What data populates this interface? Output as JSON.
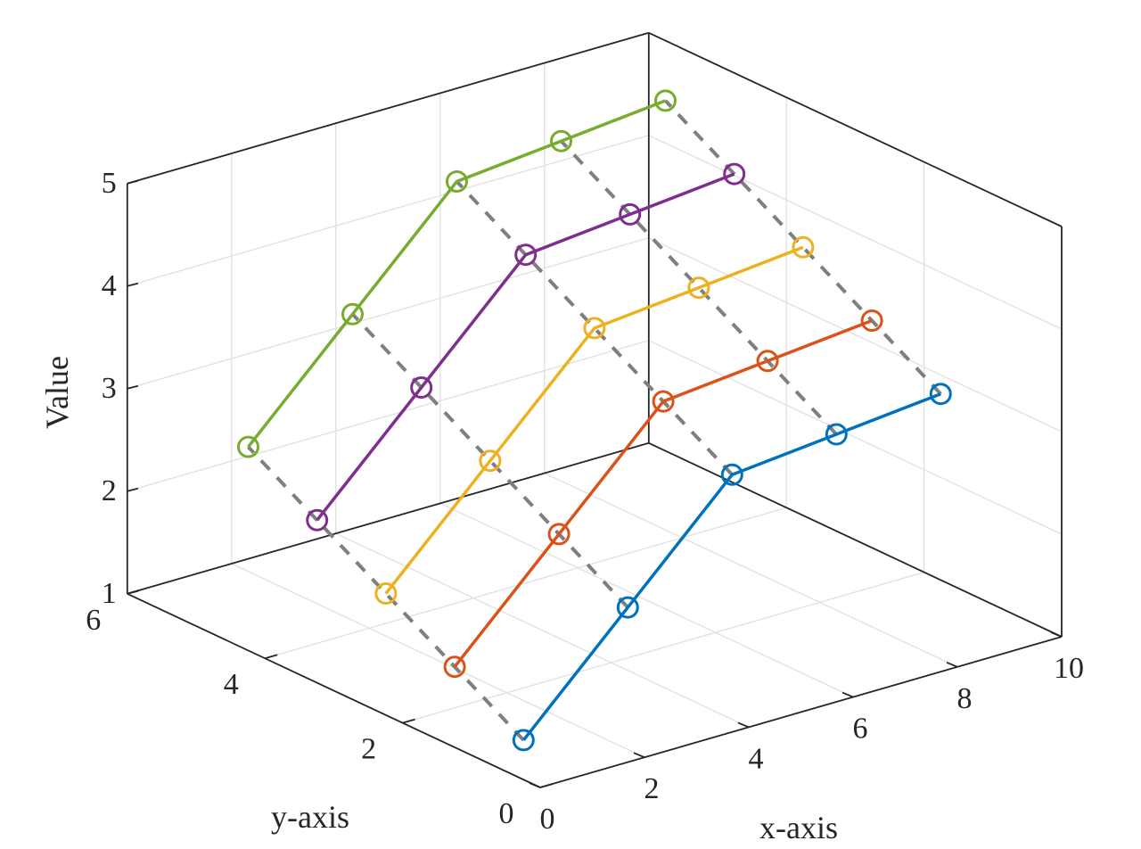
{
  "chart_data": {
    "type": "line3d",
    "title": "",
    "xlabel": "x-axis",
    "ylabel": "y-axis",
    "zlabel": "Value",
    "xlim": [
      0,
      10
    ],
    "ylim": [
      0,
      6
    ],
    "zlim": [
      1,
      5
    ],
    "xticks": [
      "0",
      "2",
      "4",
      "6",
      "8",
      "10"
    ],
    "yticks": [
      "0",
      "2",
      "4",
      "6"
    ],
    "zticks": [
      "1",
      "2",
      "3",
      "4",
      "5"
    ],
    "grid": true,
    "x": [
      1,
      3,
      5,
      7,
      9
    ],
    "series": [
      {
        "y": 1,
        "z": [
          1,
          2,
          3,
          3.1,
          3.2
        ],
        "color": "#0072BD"
      },
      {
        "y": 2,
        "z": [
          1.4,
          2.4,
          3.4,
          3.5,
          3.6
        ],
        "color": "#D95319"
      },
      {
        "y": 3,
        "z": [
          1.8,
          2.8,
          3.8,
          3.9,
          4.0
        ],
        "color": "#EDB120"
      },
      {
        "y": 4,
        "z": [
          2.2,
          3.2,
          4.2,
          4.3,
          4.4
        ],
        "color": "#7E2F8E"
      },
      {
        "y": 5,
        "z": [
          2.6,
          3.6,
          4.6,
          4.7,
          4.8
        ],
        "color": "#77AC30"
      }
    ],
    "connector_style": "dashed-gray"
  }
}
